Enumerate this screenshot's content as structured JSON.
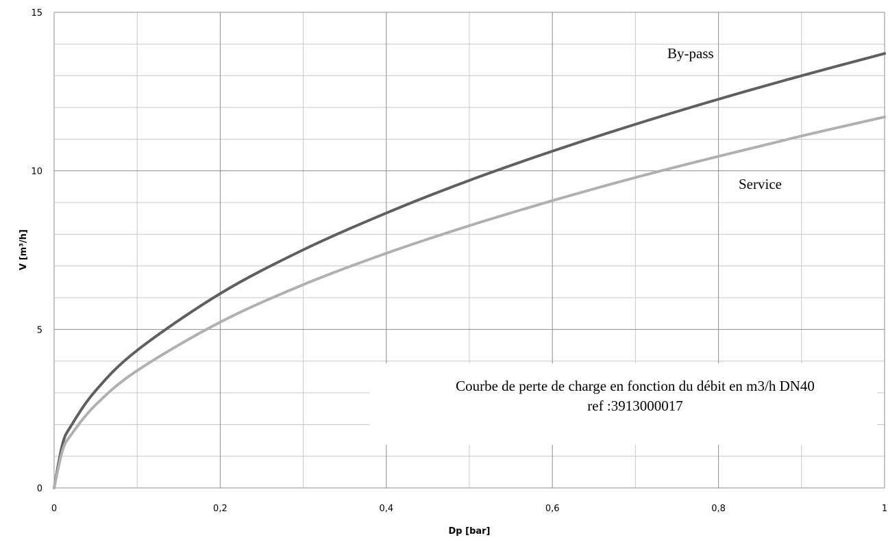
{
  "chart_data": {
    "type": "line",
    "xlabel": "Dp [bar]",
    "ylabel": "V [m³/h]",
    "xlim": [
      0,
      1
    ],
    "ylim": [
      0,
      15
    ],
    "x_ticks": [
      "0",
      "0,2",
      "0,4",
      "0,6",
      "0,8",
      "1"
    ],
    "y_ticks": [
      "0",
      "5",
      "10",
      "15"
    ],
    "grid": true,
    "annotation": {
      "line1": "Courbe de perte de charge en fonction du débit en m3/h DN40",
      "line2": "ref :3913000017"
    },
    "series": [
      {
        "name": "By-pass",
        "color": "#5f5f5f",
        "x": [
          0,
          0.01,
          0.02,
          0.05,
          0.1,
          0.2,
          0.3,
          0.4,
          0.5,
          0.6,
          0.7,
          0.8,
          0.9,
          1.0
        ],
        "y": [
          0,
          1.37,
          1.94,
          3.07,
          4.34,
          6.13,
          7.51,
          8.67,
          9.7,
          10.62,
          11.47,
          12.26,
          13.0,
          13.7
        ]
      },
      {
        "name": "Service",
        "color": "#b0b0b0",
        "x": [
          0,
          0.01,
          0.02,
          0.05,
          0.1,
          0.2,
          0.3,
          0.4,
          0.5,
          0.6,
          0.7,
          0.8,
          0.9,
          1.0
        ],
        "y": [
          0,
          1.17,
          1.66,
          2.62,
          3.7,
          5.23,
          6.41,
          7.4,
          8.27,
          9.06,
          9.79,
          10.46,
          11.1,
          11.7
        ]
      }
    ]
  }
}
